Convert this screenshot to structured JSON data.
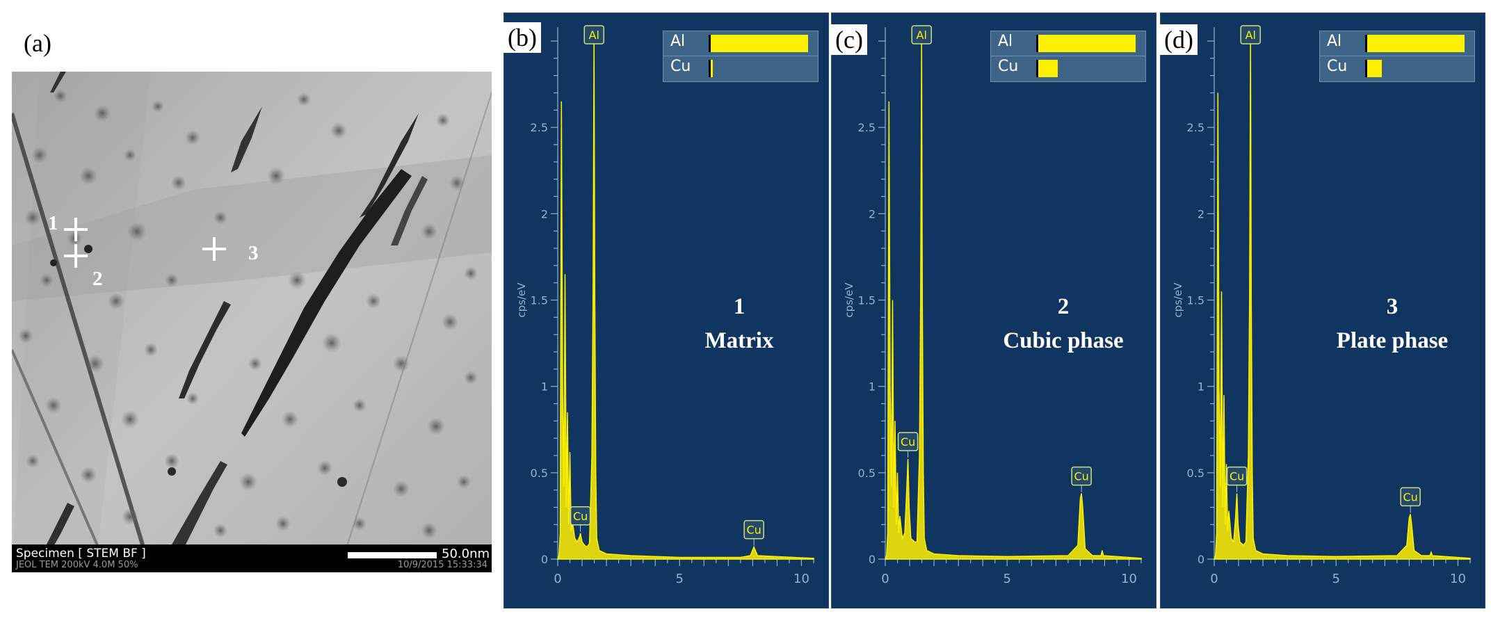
{
  "panels": {
    "a": "(a)",
    "b": "(b)",
    "c": "(c)",
    "d": "(d)"
  },
  "stem": {
    "mode_label": "Specimen [ STEM BF ]",
    "scale_label": "50.0nm",
    "meta_left": "JEOL TEM 200kV  4.0M 50%",
    "meta_right": "10/9/2015 15:33:34",
    "points": [
      {
        "label": "1"
      },
      {
        "label": "2"
      },
      {
        "label": "3"
      }
    ]
  },
  "colors": {
    "spectrum_background": "#0f3560",
    "spectrum_line": "#fff000",
    "legend_bar": "#fff000",
    "axis_text": "#8fb4cf"
  },
  "chart_data": [
    {
      "type": "line",
      "panel": "(b)",
      "ylabel": "cps/eV",
      "xlim": [
        0,
        10.5
      ],
      "ylim": [
        0,
        3
      ],
      "x_ticks": [
        "0",
        "5",
        "10"
      ],
      "y_ticks": [
        "0",
        "0.5",
        "1",
        "1.5",
        "2",
        "2.5",
        "3"
      ],
      "point_label": "1",
      "phase_label": "Matrix",
      "legend": [
        {
          "element": "Al",
          "fraction": 1.0
        },
        {
          "element": "Cu",
          "fraction": 0.02
        }
      ],
      "peak_labels": [
        {
          "element": "Al",
          "energy": 1.49
        },
        {
          "element": "Cu",
          "energy": 0.93
        },
        {
          "element": "Cu",
          "energy": 8.05
        }
      ],
      "spectrum": [
        [
          0,
          0
        ],
        [
          0.05,
          0.02
        ],
        [
          0.1,
          0.15
        ],
        [
          0.15,
          2.65
        ],
        [
          0.2,
          1.0
        ],
        [
          0.25,
          0.42
        ],
        [
          0.3,
          1.65
        ],
        [
          0.35,
          0.3
        ],
        [
          0.4,
          0.85
        ],
        [
          0.45,
          0.2
        ],
        [
          0.5,
          0.62
        ],
        [
          0.55,
          0.16
        ],
        [
          0.6,
          0.22
        ],
        [
          0.7,
          0.12
        ],
        [
          0.8,
          0.1
        ],
        [
          0.9,
          0.13
        ],
        [
          0.93,
          0.15
        ],
        [
          1.0,
          0.1
        ],
        [
          1.1,
          0.08
        ],
        [
          1.2,
          0.07
        ],
        [
          1.3,
          0.09
        ],
        [
          1.4,
          0.6
        ],
        [
          1.45,
          1.55
        ],
        [
          1.49,
          3.05
        ],
        [
          1.52,
          1.55
        ],
        [
          1.56,
          0.5
        ],
        [
          1.6,
          0.12
        ],
        [
          1.7,
          0.05
        ],
        [
          2.0,
          0.03
        ],
        [
          3.0,
          0.02
        ],
        [
          5.0,
          0.01
        ],
        [
          7.5,
          0.01
        ],
        [
          7.9,
          0.02
        ],
        [
          8.05,
          0.07
        ],
        [
          8.2,
          0.02
        ],
        [
          8.9,
          0.015
        ],
        [
          10.5,
          0.005
        ]
      ]
    },
    {
      "type": "line",
      "panel": "(c)",
      "ylabel": "cps/eV",
      "xlim": [
        0,
        10.5
      ],
      "ylim": [
        0,
        3
      ],
      "x_ticks": [
        "0",
        "5",
        "10"
      ],
      "y_ticks": [
        "0",
        "0.5",
        "1",
        "1.5",
        "2",
        "2.5",
        "3"
      ],
      "point_label": "2",
      "phase_label": "Cubic phase",
      "legend": [
        {
          "element": "Al",
          "fraction": 1.0
        },
        {
          "element": "Cu",
          "fraction": 0.2
        }
      ],
      "peak_labels": [
        {
          "element": "Al",
          "energy": 1.49
        },
        {
          "element": "Cu",
          "energy": 0.93
        },
        {
          "element": "Cu",
          "energy": 8.05
        }
      ],
      "spectrum": [
        [
          0,
          0
        ],
        [
          0.05,
          0.02
        ],
        [
          0.1,
          0.15
        ],
        [
          0.15,
          2.65
        ],
        [
          0.2,
          1.0
        ],
        [
          0.25,
          0.42
        ],
        [
          0.3,
          1.5
        ],
        [
          0.35,
          0.3
        ],
        [
          0.4,
          0.8
        ],
        [
          0.45,
          0.2
        ],
        [
          0.5,
          0.5
        ],
        [
          0.55,
          0.15
        ],
        [
          0.6,
          0.25
        ],
        [
          0.7,
          0.12
        ],
        [
          0.8,
          0.15
        ],
        [
          0.88,
          0.4
        ],
        [
          0.93,
          0.58
        ],
        [
          0.98,
          0.3
        ],
        [
          1.05,
          0.12
        ],
        [
          1.2,
          0.1
        ],
        [
          1.3,
          0.1
        ],
        [
          1.4,
          0.6
        ],
        [
          1.45,
          1.5
        ],
        [
          1.49,
          3.05
        ],
        [
          1.52,
          1.5
        ],
        [
          1.56,
          0.5
        ],
        [
          1.6,
          0.12
        ],
        [
          1.7,
          0.05
        ],
        [
          2.0,
          0.03
        ],
        [
          3.0,
          0.02
        ],
        [
          5.0,
          0.015
        ],
        [
          7.5,
          0.02
        ],
        [
          7.9,
          0.08
        ],
        [
          8.0,
          0.35
        ],
        [
          8.05,
          0.38
        ],
        [
          8.1,
          0.3
        ],
        [
          8.2,
          0.06
        ],
        [
          8.5,
          0.02
        ],
        [
          8.85,
          0.02
        ],
        [
          8.9,
          0.05
        ],
        [
          8.95,
          0.02
        ],
        [
          10.5,
          0.005
        ]
      ]
    },
    {
      "type": "line",
      "panel": "(d)",
      "ylabel": "cps/eV",
      "xlim": [
        0,
        10.5
      ],
      "ylim": [
        0,
        3
      ],
      "x_ticks": [
        "0",
        "5",
        "10"
      ],
      "y_ticks": [
        "0",
        "0.5",
        "1",
        "1.5",
        "2",
        "2.5",
        "3"
      ],
      "point_label": "3",
      "phase_label": "Plate phase",
      "legend": [
        {
          "element": "Al",
          "fraction": 1.0
        },
        {
          "element": "Cu",
          "fraction": 0.15
        }
      ],
      "peak_labels": [
        {
          "element": "Al",
          "energy": 1.49
        },
        {
          "element": "Cu",
          "energy": 0.93
        },
        {
          "element": "Cu",
          "energy": 8.05
        }
      ],
      "spectrum": [
        [
          0,
          0
        ],
        [
          0.05,
          0.02
        ],
        [
          0.1,
          0.15
        ],
        [
          0.15,
          2.7
        ],
        [
          0.2,
          1.0
        ],
        [
          0.25,
          0.42
        ],
        [
          0.3,
          1.55
        ],
        [
          0.35,
          0.3
        ],
        [
          0.4,
          0.95
        ],
        [
          0.45,
          0.2
        ],
        [
          0.5,
          0.55
        ],
        [
          0.55,
          0.16
        ],
        [
          0.6,
          0.28
        ],
        [
          0.7,
          0.12
        ],
        [
          0.8,
          0.1
        ],
        [
          0.88,
          0.25
        ],
        [
          0.93,
          0.38
        ],
        [
          0.98,
          0.2
        ],
        [
          1.05,
          0.1
        ],
        [
          1.2,
          0.08
        ],
        [
          1.3,
          0.1
        ],
        [
          1.4,
          0.6
        ],
        [
          1.45,
          1.5
        ],
        [
          1.49,
          3.05
        ],
        [
          1.52,
          1.5
        ],
        [
          1.56,
          0.5
        ],
        [
          1.6,
          0.12
        ],
        [
          1.7,
          0.05
        ],
        [
          2.0,
          0.03
        ],
        [
          3.0,
          0.02
        ],
        [
          5.0,
          0.015
        ],
        [
          7.5,
          0.02
        ],
        [
          7.9,
          0.08
        ],
        [
          8.0,
          0.24
        ],
        [
          8.05,
          0.26
        ],
        [
          8.1,
          0.2
        ],
        [
          8.2,
          0.05
        ],
        [
          8.5,
          0.02
        ],
        [
          8.85,
          0.02
        ],
        [
          8.9,
          0.04
        ],
        [
          8.95,
          0.02
        ],
        [
          10.5,
          0.005
        ]
      ]
    }
  ]
}
